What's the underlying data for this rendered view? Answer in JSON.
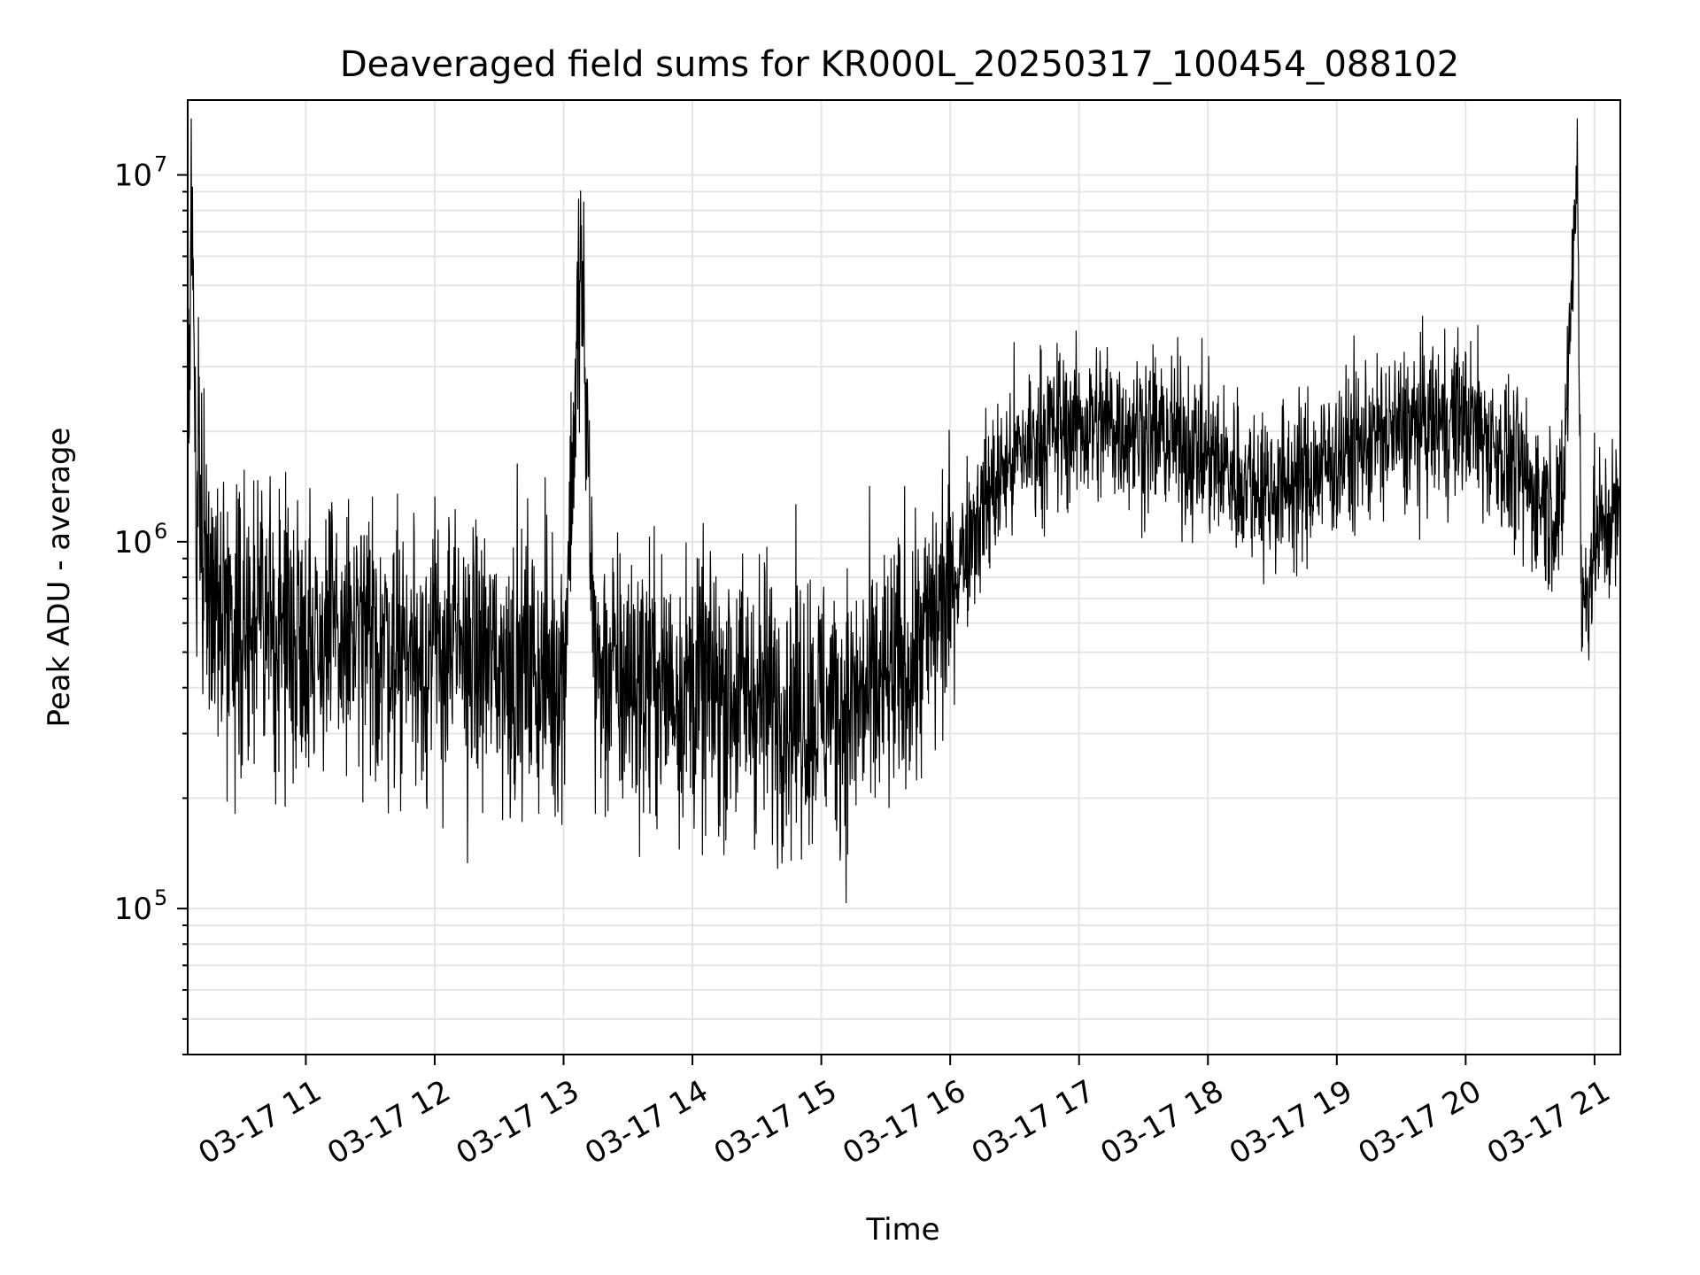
{
  "chart_data": {
    "type": "line",
    "title": "Deaveraged field sums for KR000L_20250317_100454_088102",
    "xlabel": "Time",
    "ylabel": "Peak ADU - average",
    "y_scale": "log",
    "ylim": [
      40000,
      16000000
    ],
    "xlim": [
      "2025-03-17 10:05",
      "2025-03-17 21:12"
    ],
    "grid": true,
    "line_color": "#000000",
    "grid_color": "#e5e5e5",
    "x_ticks": [
      {
        "t": "2025-03-17 11:00",
        "label": "03-17 11"
      },
      {
        "t": "2025-03-17 12:00",
        "label": "03-17 12"
      },
      {
        "t": "2025-03-17 13:00",
        "label": "03-17 13"
      },
      {
        "t": "2025-03-17 14:00",
        "label": "03-17 14"
      },
      {
        "t": "2025-03-17 15:00",
        "label": "03-17 15"
      },
      {
        "t": "2025-03-17 16:00",
        "label": "03-17 16"
      },
      {
        "t": "2025-03-17 17:00",
        "label": "03-17 17"
      },
      {
        "t": "2025-03-17 18:00",
        "label": "03-17 18"
      },
      {
        "t": "2025-03-17 19:00",
        "label": "03-17 19"
      },
      {
        "t": "2025-03-17 20:00",
        "label": "03-17 20"
      },
      {
        "t": "2025-03-17 21:00",
        "label": "03-17 21"
      }
    ],
    "y_ticks": [
      {
        "value": 100000,
        "base": "10",
        "exp": "5"
      },
      {
        "value": 1000000,
        "base": "10",
        "exp": "6"
      },
      {
        "value": 10000000,
        "base": "10",
        "exp": "7"
      }
    ],
    "series": [
      {
        "x": [
          "2025-03-17 10:05",
          "2025-03-17 10:06",
          "2025-03-17 10:07",
          "2025-03-17 10:09",
          "2025-03-17 10:10",
          "2025-03-17 10:12",
          "2025-03-17 10:15",
          "2025-03-17 10:20",
          "2025-03-17 10:30",
          "2025-03-17 10:45",
          "2025-03-17 11:00",
          "2025-03-17 11:15",
          "2025-03-17 11:30",
          "2025-03-17 11:45",
          "2025-03-17 12:00",
          "2025-03-17 12:15",
          "2025-03-17 12:30",
          "2025-03-17 12:45",
          "2025-03-17 13:00",
          "2025-03-17 13:08",
          "2025-03-17 13:15",
          "2025-03-17 13:30",
          "2025-03-17 13:45",
          "2025-03-17 14:00",
          "2025-03-17 14:15",
          "2025-03-17 14:30",
          "2025-03-17 14:45",
          "2025-03-17 15:00",
          "2025-03-17 15:15",
          "2025-03-17 15:30",
          "2025-03-17 15:45",
          "2025-03-17 16:00",
          "2025-03-17 16:10",
          "2025-03-17 16:20",
          "2025-03-17 16:30",
          "2025-03-17 16:45",
          "2025-03-17 17:00",
          "2025-03-17 17:15",
          "2025-03-17 17:30",
          "2025-03-17 17:45",
          "2025-03-17 18:00",
          "2025-03-17 18:15",
          "2025-03-17 18:30",
          "2025-03-17 18:45",
          "2025-03-17 19:00",
          "2025-03-17 19:15",
          "2025-03-17 19:30",
          "2025-03-17 19:45",
          "2025-03-17 20:00",
          "2025-03-17 20:15",
          "2025-03-17 20:30",
          "2025-03-17 20:45",
          "2025-03-17 20:52",
          "2025-03-17 20:54",
          "2025-03-17 21:00",
          "2025-03-17 21:05",
          "2025-03-17 21:12"
        ],
        "y": [
          1500000,
          3000000,
          9000000,
          1200000,
          1800000,
          1100000,
          800000,
          650000,
          600000,
          580000,
          560000,
          540000,
          530000,
          520000,
          500000,
          490000,
          470000,
          450000,
          440000,
          5700000,
          430000,
          420000,
          410000,
          400000,
          390000,
          380000,
          360000,
          350000,
          360000,
          400000,
          500000,
          750000,
          1100000,
          1400000,
          1700000,
          2000000,
          2100000,
          2100000,
          2000000,
          1900000,
          1700000,
          1500000,
          1400000,
          1500000,
          1700000,
          1900000,
          2000000,
          2100000,
          2200000,
          1800000,
          1400000,
          1200000,
          12000000,
          600000,
          1000000,
          1100000,
          1200000
        ]
      }
    ]
  }
}
